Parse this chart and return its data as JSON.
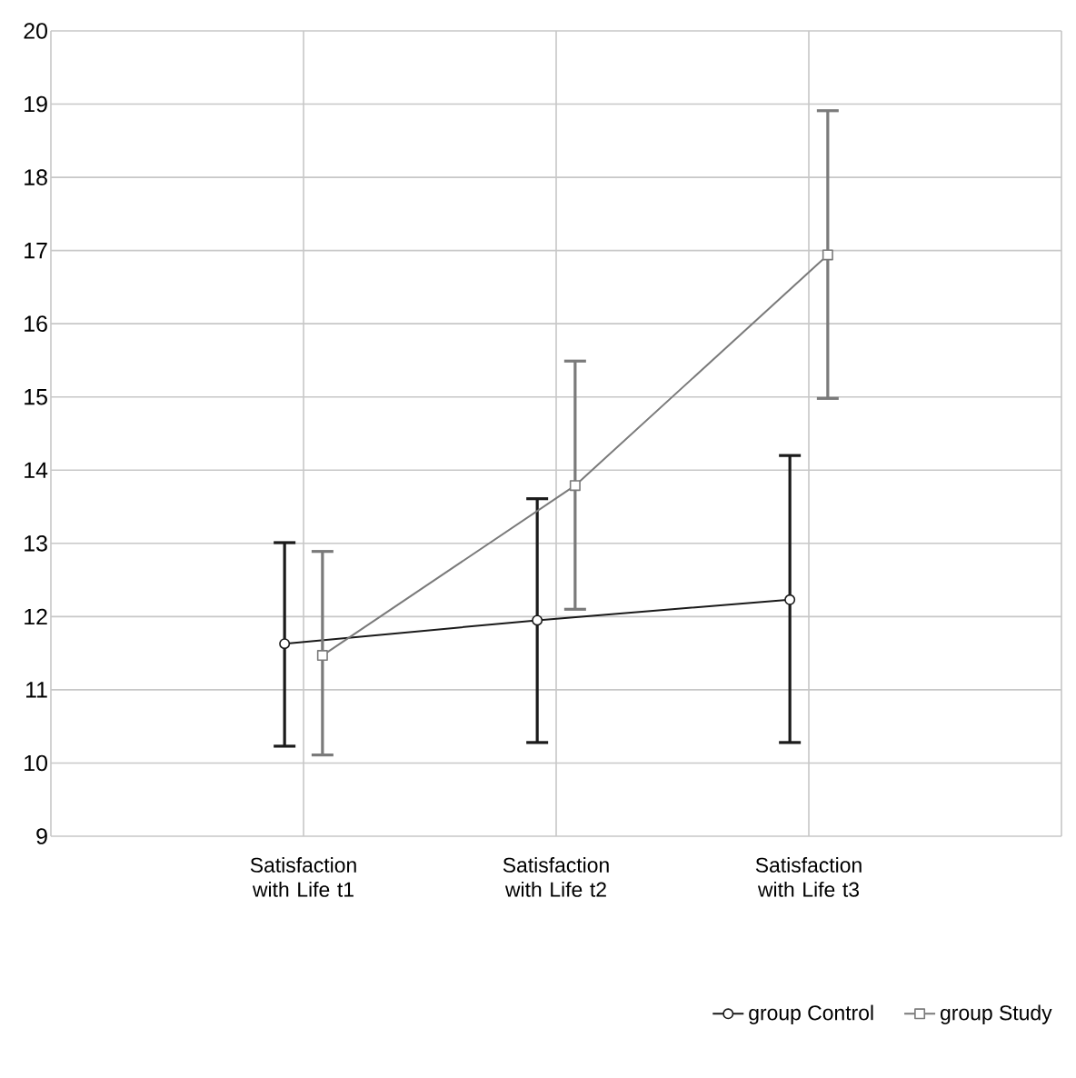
{
  "chart_data": {
    "type": "line",
    "categories": [
      "Satisfaction with Life t1",
      "Satisfaction with Life t2",
      "Satisfaction with Life t3"
    ],
    "series": [
      {
        "name": "group Control",
        "color": "#1a1a1a",
        "marker": "circle",
        "values": [
          11.63,
          11.95,
          12.23
        ],
        "errors": [
          [
            10.23,
            13.01
          ],
          [
            10.28,
            13.61
          ],
          [
            10.28,
            14.2
          ]
        ]
      },
      {
        "name": "group Study",
        "color": "#7a7a7a",
        "marker": "square",
        "values": [
          11.47,
          13.79,
          16.94
        ],
        "errors": [
          [
            10.11,
            12.89
          ],
          [
            12.1,
            15.49
          ],
          [
            14.98,
            18.91
          ]
        ]
      }
    ],
    "ylim": [
      9,
      20
    ],
    "yticks": [
      9,
      10,
      11,
      12,
      13,
      14,
      15,
      16,
      17,
      18,
      19,
      20
    ],
    "grid": true,
    "legend": "bottom right"
  }
}
